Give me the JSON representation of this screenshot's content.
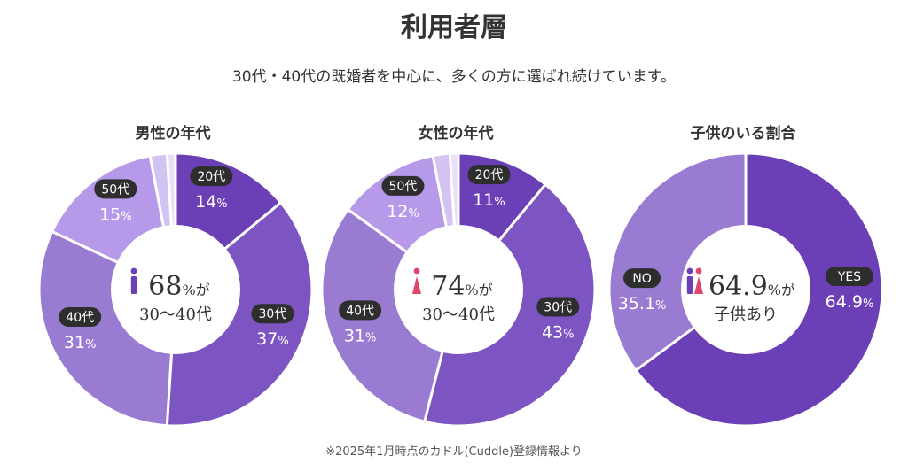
{
  "header": {
    "title": "利用者層",
    "subtitle": "30代・40代の既婚者を中心に、多くの方に選ばれ続けています。"
  },
  "footnote": "※2025年1月時点のカドル(Cuddle)登録情報より",
  "colors": {
    "c20": "#6b3fb5",
    "c30": "#7c55c2",
    "c40": "#9a7bd2",
    "c50": "#b69ae9",
    "c60": "#d2c3f3",
    "c70": "#e8e0f8",
    "male_icon": "#6b3fb5",
    "female_icon": "#e0456a",
    "badge_bg": "#2e2e2e"
  },
  "chart_data": [
    {
      "type": "pie",
      "title": "男性の年代",
      "slices": [
        {
          "label": "20代",
          "value": 14,
          "display": "14",
          "unit": "%",
          "color": "#6b3fb5"
        },
        {
          "label": "30代",
          "value": 37,
          "display": "37",
          "unit": "%",
          "color": "#7c55c2"
        },
        {
          "label": "40代",
          "value": 31,
          "display": "31",
          "unit": "%",
          "color": "#9a7bd2"
        },
        {
          "label": "50代",
          "value": 15,
          "display": "15",
          "unit": "%",
          "color": "#b69ae9"
        },
        {
          "label": "",
          "value": 2,
          "display": "",
          "unit": "",
          "color": "#d2c3f3"
        },
        {
          "label": "",
          "value": 1,
          "display": "",
          "unit": "",
          "color": "#e8e0f8"
        }
      ],
      "center": {
        "icon": "male",
        "value": "68",
        "unit": "%が",
        "line2": "30〜40代"
      }
    },
    {
      "type": "pie",
      "title": "女性の年代",
      "slices": [
        {
          "label": "20代",
          "value": 11,
          "display": "11",
          "unit": "%",
          "color": "#6b3fb5"
        },
        {
          "label": "30代",
          "value": 43,
          "display": "43",
          "unit": "%",
          "color": "#7c55c2"
        },
        {
          "label": "40代",
          "value": 31,
          "display": "31",
          "unit": "%",
          "color": "#9a7bd2"
        },
        {
          "label": "50代",
          "value": 12,
          "display": "12",
          "unit": "%",
          "color": "#b69ae9"
        },
        {
          "label": "",
          "value": 2,
          "display": "",
          "unit": "",
          "color": "#d2c3f3"
        },
        {
          "label": "",
          "value": 1,
          "display": "",
          "unit": "",
          "color": "#e8e0f8"
        }
      ],
      "center": {
        "icon": "female",
        "value": "74",
        "unit": "%が",
        "line2": "30〜40代"
      }
    },
    {
      "type": "pie",
      "title": "子供のいる割合",
      "slices": [
        {
          "label": "YES",
          "value": 64.9,
          "display": "64.9",
          "unit": "%",
          "color": "#6b3fb5"
        },
        {
          "label": "NO",
          "value": 35.1,
          "display": "35.1",
          "unit": "%",
          "color": "#9a7bd2"
        }
      ],
      "center": {
        "icon": "couple",
        "value": "64.9",
        "unit": "%が",
        "line2": "子供あり"
      }
    }
  ]
}
